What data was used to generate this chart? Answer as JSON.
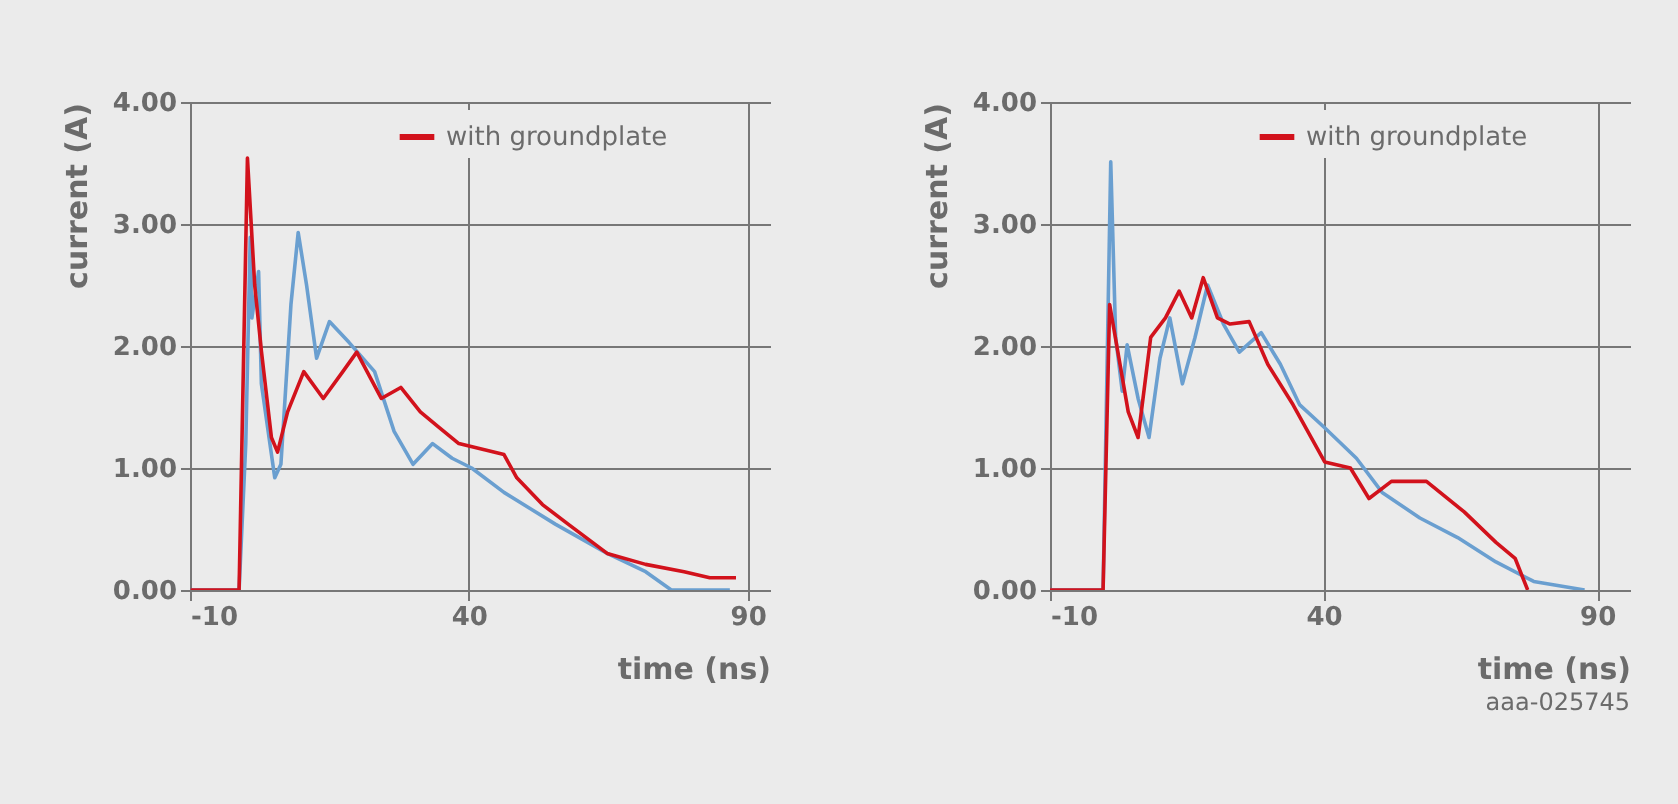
{
  "chart_data": [
    {
      "type": "line",
      "xlabel": "time (ns)",
      "ylabel": "current (A)",
      "xlim": [
        -10,
        94
      ],
      "ylim": [
        0,
        4
      ],
      "xticks": [
        -10,
        40,
        90
      ],
      "yticks": [
        {
          "value": 0,
          "label": "0.00"
        },
        {
          "value": 1,
          "label": "1.00"
        },
        {
          "value": 2,
          "label": "2.00"
        },
        {
          "value": 3,
          "label": "3.00"
        },
        {
          "value": 4,
          "label": "4.00"
        }
      ],
      "grid": true,
      "legend": "top",
      "series": [
        {
          "color": "#6a9fd0",
          "x": [
            -9.9,
            -1.2,
            0.0,
            0.8,
            1.1,
            2.3,
            2.8,
            5.2,
            6.3,
            8.1,
            9.4,
            10.9,
            12.7,
            15,
            18.5,
            23.1,
            26.6,
            30,
            33.5,
            37,
            40.5,
            46.3,
            50.9,
            55.5,
            64.8,
            71.7,
            76.3,
            86.8
          ],
          "values": [
            0,
            0,
            1.2,
            2.89,
            2.23,
            2.61,
            1.69,
            0.92,
            1.03,
            2.34,
            2.93,
            2.5,
            1.9,
            2.2,
            2.03,
            1.79,
            1.3,
            1.03,
            1.2,
            1.08,
            1.0,
            0.8,
            0.67,
            0.54,
            0.3,
            0.15,
            0,
            0
          ]
        },
        {
          "name": "with groundplate",
          "color": "#d2121c",
          "x": [
            -9.9,
            -1.2,
            0.3,
            1.6,
            2.8,
            4.6,
            5.7,
            7.5,
            10.4,
            13.9,
            17.4,
            19.9,
            24.3,
            27.8,
            31.3,
            34.7,
            38.2,
            46.3,
            48.6,
            53.2,
            57.8,
            64.8,
            71.7,
            78.6,
            83.2,
            87.9
          ],
          "values": [
            0,
            0,
            3.54,
            2.5,
            1.96,
            1.25,
            1.13,
            1.46,
            1.79,
            1.57,
            1.79,
            1.95,
            1.57,
            1.66,
            1.46,
            1.33,
            1.2,
            1.11,
            0.92,
            0.7,
            0.54,
            0.3,
            0.21,
            0.15,
            0.1,
            0.1
          ]
        }
      ]
    },
    {
      "type": "line",
      "xlabel": "time (ns)",
      "ylabel": "current (A)",
      "xlim": [
        -10,
        96
      ],
      "ylim": [
        0,
        4
      ],
      "xticks": [
        -10,
        40,
        90
      ],
      "yticks": [
        {
          "value": 0,
          "label": "0.00"
        },
        {
          "value": 1,
          "label": "1.00"
        },
        {
          "value": 2,
          "label": "2.00"
        },
        {
          "value": 3,
          "label": "3.00"
        },
        {
          "value": 4,
          "label": "4.00"
        }
      ],
      "grid": true,
      "legend": "top",
      "annotations": [
        "aaa-025745"
      ],
      "series": [
        {
          "color": "#6a9fd0",
          "x": [
            -10,
            -0.3,
            1.1,
            2.0,
            3.2,
            4.1,
            6.1,
            8.1,
            10.1,
            11.9,
            14.2,
            16.5,
            18.8,
            21.7,
            24.6,
            28.6,
            32.1,
            35.6,
            40.2,
            46,
            50.7,
            57.6,
            64.5,
            71.5,
            78.4,
            87.7
          ],
          "values": [
            0,
            0,
            3.51,
            2.07,
            1.63,
            2.01,
            1.57,
            1.25,
            1.9,
            2.23,
            1.69,
            2.07,
            2.5,
            2.18,
            1.95,
            2.11,
            1.85,
            1.52,
            1.33,
            1.08,
            0.8,
            0.59,
            0.43,
            0.23,
            0.07,
            0
          ]
        },
        {
          "name": "with groundplate",
          "color": "#d2121c",
          "x": [
            -10,
            -0.3,
            0.9,
            2.6,
            4.3,
            6.1,
            8.4,
            11.1,
            13.6,
            15.9,
            18,
            20.6,
            22.9,
            26.4,
            29.8,
            34.4,
            40.2,
            44.9,
            48.3,
            52.4,
            58.8,
            65.7,
            71.5,
            75,
            77.3
          ],
          "values": [
            0,
            0,
            2.34,
            1.9,
            1.46,
            1.25,
            2.07,
            2.23,
            2.45,
            2.23,
            2.56,
            2.23,
            2.18,
            2.2,
            1.85,
            1.52,
            1.05,
            1.0,
            0.75,
            0.89,
            0.89,
            0.64,
            0.39,
            0.26,
            0
          ]
        }
      ]
    }
  ]
}
